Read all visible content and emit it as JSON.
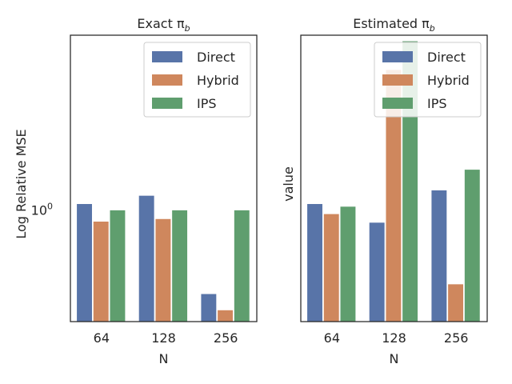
{
  "chart_data": [
    {
      "type": "bar",
      "title": "Exact π",
      "title_sub": "b",
      "xlabel": "N",
      "ylabel": "Log Relative MSE",
      "yscale": "log",
      "y_tick_label": "10",
      "y_tick_exp": "0",
      "y_tick_value": 1.0,
      "ylim": [
        0.3,
        6.6
      ],
      "categories": [
        "64",
        "128",
        "256"
      ],
      "series": [
        {
          "name": "Direct",
          "values": [
            1.07,
            1.17,
            0.405
          ]
        },
        {
          "name": "Hybrid",
          "values": [
            0.885,
            0.91,
            0.34
          ]
        },
        {
          "name": "IPS",
          "values": [
            1.0,
            1.0,
            1.0
          ]
        }
      ],
      "legend": "top-right"
    },
    {
      "type": "bar",
      "title": "Estimated π",
      "title_sub": "b",
      "xlabel": "N",
      "ylabel": "value",
      "yscale": "log",
      "ylim": [
        0.3,
        6.6
      ],
      "categories": [
        "64",
        "128",
        "256"
      ],
      "series": [
        {
          "name": "Direct",
          "values": [
            1.07,
            0.875,
            1.24
          ]
        },
        {
          "name": "Hybrid",
          "values": [
            0.96,
            4.55,
            0.45
          ]
        },
        {
          "name": "IPS",
          "values": [
            1.04,
            6.2,
            1.55
          ]
        }
      ],
      "legend": "top-right"
    }
  ],
  "colors": {
    "Direct": "#5874a8",
    "Hybrid": "#cf875d",
    "IPS": "#5f9e6e",
    "axis": "#262626"
  }
}
